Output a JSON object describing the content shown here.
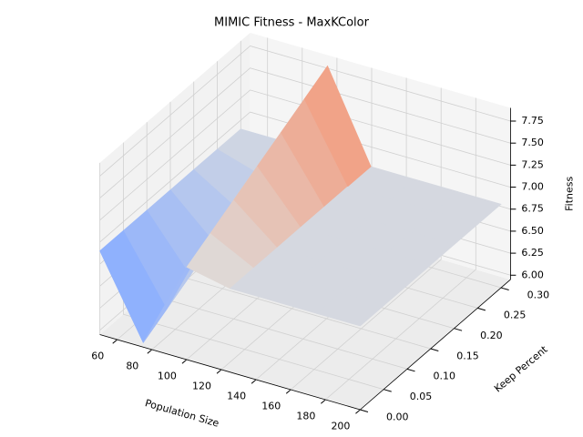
{
  "chart_data": {
    "type": "surface",
    "title": "MIMIC Fitness - MaxKColor",
    "x_label": "Population Size",
    "y_label": "Keep Percent",
    "z_label": "Fitness",
    "cmap": "coolwarm",
    "x": [
      50,
      75,
      100,
      125,
      150,
      175,
      200
    ],
    "y": [
      0.0,
      0.05,
      0.1,
      0.15,
      0.2,
      0.25,
      0.3
    ],
    "z": [
      [
        6.9,
        6.0,
        7.0,
        6.9,
        6.9,
        6.9,
        6.9
      ],
      [
        6.9,
        6.15,
        7.15,
        6.9,
        6.9,
        6.9,
        6.9
      ],
      [
        6.9,
        6.3,
        7.3,
        6.9,
        6.9,
        6.9,
        6.9
      ],
      [
        6.9,
        6.45,
        7.45,
        6.9,
        6.9,
        6.9,
        6.9
      ],
      [
        6.9,
        6.6,
        7.6,
        6.9,
        6.9,
        6.9,
        6.9
      ],
      [
        6.9,
        6.75,
        7.75,
        6.9,
        6.9,
        6.9,
        6.9
      ],
      [
        6.9,
        6.9,
        7.9,
        6.9,
        6.9,
        6.9,
        6.9
      ]
    ],
    "xlim": [
      50,
      200
    ],
    "ylim": [
      0,
      0.32
    ],
    "zlim": [
      5.95,
      7.9
    ],
    "xticks": [
      60,
      80,
      100,
      120,
      140,
      160,
      180,
      200
    ],
    "yticks": [
      {
        "value": 0,
        "label": "0.00"
      },
      {
        "value": 0.05,
        "label": "0.05"
      },
      {
        "value": 0.1,
        "label": "0.10"
      },
      {
        "value": 0.15,
        "label": "0.15"
      },
      {
        "value": 0.2,
        "label": "0.20"
      },
      {
        "value": 0.25,
        "label": "0.25"
      },
      {
        "value": 0.3,
        "label": "0.30"
      }
    ],
    "zticks": [
      {
        "value": 6,
        "label": "6.00"
      },
      {
        "value": 6.25,
        "label": "6.25"
      },
      {
        "value": 6.5,
        "label": "6.50"
      },
      {
        "value": 6.75,
        "label": "6.75"
      },
      {
        "value": 7,
        "label": "7.00"
      },
      {
        "value": 7.25,
        "label": "7.25"
      },
      {
        "value": 7.5,
        "label": "7.50"
      },
      {
        "value": 7.75,
        "label": "7.75"
      }
    ],
    "grid": true
  }
}
